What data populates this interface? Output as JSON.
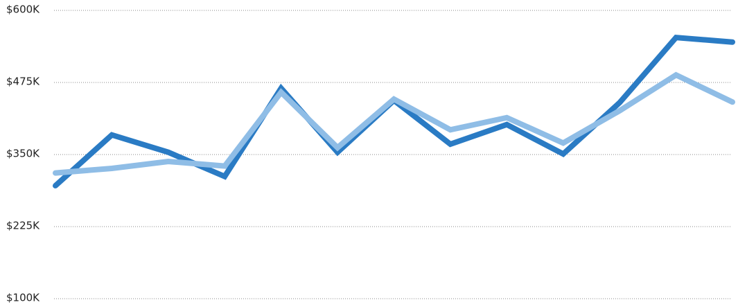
{
  "chart_data": {
    "type": "line",
    "categories": [
      null,
      null,
      null,
      null,
      null,
      null,
      null,
      null,
      null,
      null,
      null,
      null,
      null
    ],
    "series": [
      {
        "color": "#2a7bc4",
        "values": [
          296000,
          384000,
          354000,
          312000,
          465000,
          354000,
          444000,
          368000,
          402000,
          351000,
          440000,
          553000,
          545000
        ]
      },
      {
        "color": "#8fbde6",
        "values": [
          318000,
          326000,
          338000,
          330000,
          458000,
          362000,
          446000,
          393000,
          414000,
          370000,
          426000,
          488000,
          441000
        ]
      }
    ],
    "ylim": [
      100000,
      600000
    ],
    "yticks": [
      {
        "value": 100000,
        "label": "$100K"
      },
      {
        "value": 225000,
        "label": "$225K"
      },
      {
        "value": 350000,
        "label": "$350K"
      },
      {
        "value": 475000,
        "label": "$475K"
      },
      {
        "value": 600000,
        "label": "$600K"
      }
    ],
    "grid": true
  }
}
